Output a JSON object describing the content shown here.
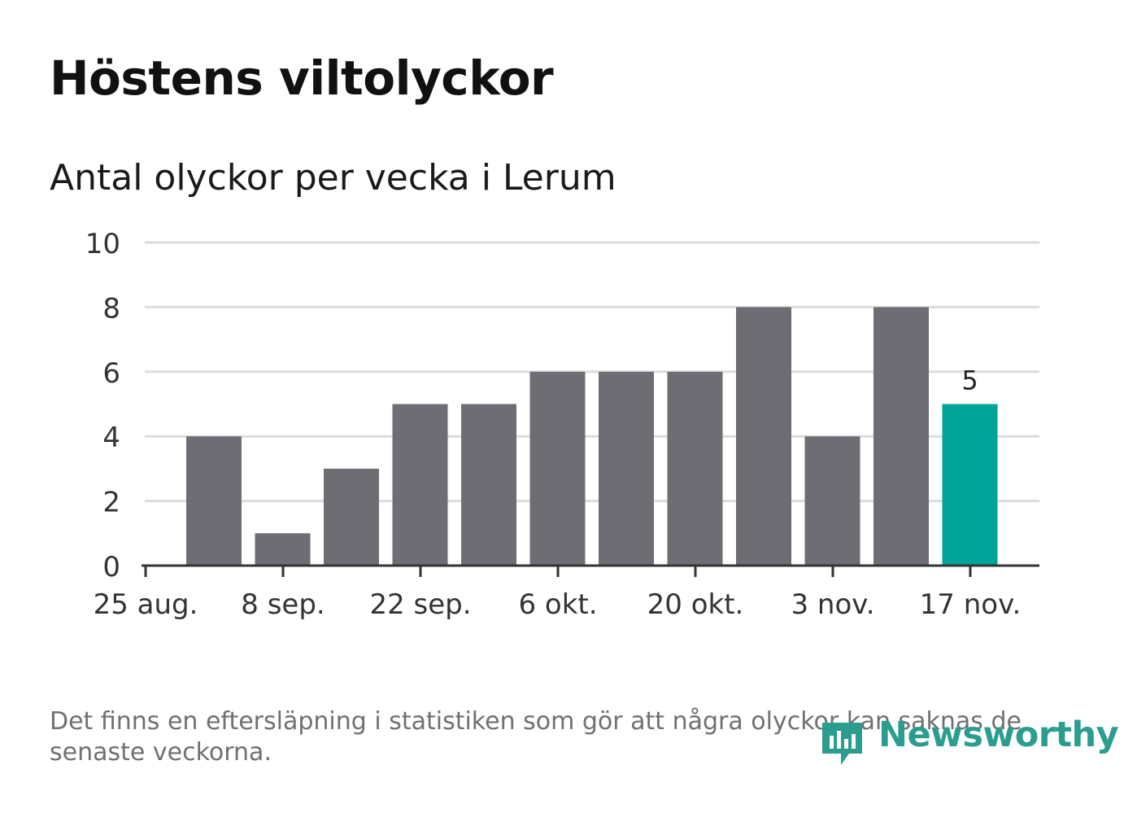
{
  "header": {
    "title": "Höstens viltolyckor",
    "subtitle": "Antal olyckor per vecka i Lerum"
  },
  "footer": {
    "note": "Det finns en eftersläpning i statistiken som gör att några olyckor kan saknas de senaste veckorna.",
    "brand": "Newsworthy"
  },
  "colors": {
    "bar": "#6e6d73",
    "highlight": "#00a398",
    "grid": "#dcdcdc",
    "axis": "#333333",
    "brand": "#2a9d8f"
  },
  "chart_data": {
    "type": "bar",
    "title": "Antal olyckor per vecka i Lerum",
    "xlabel": "",
    "ylabel": "",
    "ylim": [
      0,
      10
    ],
    "y_ticks": [
      0,
      2,
      4,
      6,
      8,
      10
    ],
    "x_tick_labels": [
      "25 aug.",
      "8 sep.",
      "22 sep.",
      "6 okt.",
      "20 okt.",
      "3 nov.",
      "17 nov."
    ],
    "series": [
      {
        "name": "Antal olyckor",
        "values": [
          4,
          1,
          3,
          5,
          5,
          6,
          6,
          6,
          8,
          4,
          8,
          5
        ]
      }
    ],
    "highlighted_index": 11,
    "data_labels": [
      {
        "index": 11,
        "text": "5"
      }
    ],
    "grid": true
  }
}
